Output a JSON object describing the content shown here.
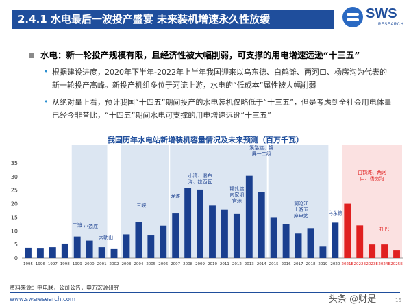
{
  "header": {
    "title": "2.4.1 水电最后一波投产盛宴 未来装机增速永久性放缓",
    "logo_text": "SWS",
    "logo_sub": "RESEARCH"
  },
  "main_bullet": "水电：新一轮投产规模有限，且经济性被大幅削弱，可支撑的用电增速远逊“十三五”",
  "sub_bullets": [
    "根据建设进度，2020年下半年-2022年上半年我国迎来以乌东德、白鹤滩、两河口、杨房沟为代表的新一轮投产高峰。新投产机组多位于河流上游，水电的“低成本”属性被大幅削弱",
    "从绝对量上看，预计我国“十四五”期间投产的水电装机仅略低于“十三五”，但是考虑到全社会用电体量已经今非昔比，“十四五”期间水电可支撑的用电增速远逊“十三五”"
  ],
  "chart_data": {
    "type": "bar",
    "title": "我国历年水电站新增装机容量情况及未来预测（百万千瓦）",
    "categories": [
      "1995",
      "1996",
      "1997",
      "1998",
      "1999",
      "2000",
      "2001",
      "2002",
      "2003",
      "2004",
      "2005",
      "2006",
      "2007",
      "2008",
      "2009",
      "2010",
      "2011",
      "2012",
      "2013",
      "2014",
      "2015",
      "2016",
      "2017",
      "2018",
      "2019",
      "2020",
      "2021E",
      "2022E",
      "2023E",
      "2024E",
      "2025E"
    ],
    "values": [
      3.8,
      3.5,
      4.0,
      5.3,
      7.9,
      6.4,
      4.0,
      3.3,
      8.7,
      13.2,
      8.3,
      11.9,
      16.6,
      25.7,
      25.2,
      19.3,
      17.7,
      16.4,
      30.3,
      24.3,
      15.0,
      12.4,
      9.0,
      11.0,
      4.2,
      13.0,
      20.0,
      12.0,
      5.0,
      5.0,
      3.0
    ],
    "forecast_from_index": 26,
    "ylim": [
      0,
      35
    ],
    "yticks": [
      0,
      5,
      10,
      15,
      20,
      25,
      30,
      35
    ],
    "annotations": [
      "二滩",
      "小浪底",
      "大朝山",
      "三峡",
      "龙滩",
      "小湾、瀑布沟、拉西瓦",
      "糯扎渡向家坝官地",
      "溪洛渡、锦屏一二级",
      "澜沧江上游五座电站",
      "乌东德",
      "白鹤滩、两河口、杨房沟",
      "托巴"
    ],
    "colors": {
      "actual": "#1a3f8f",
      "forecast": "#e02020",
      "band_actual": "#dce6f2",
      "band_forecast": "#fbe1e1"
    }
  },
  "source": "资料来源：中电联，公司公告，申万宏源研究",
  "footer_url": "www.swsresearch.com",
  "watermark": "头条 @财是",
  "page_number": "16"
}
